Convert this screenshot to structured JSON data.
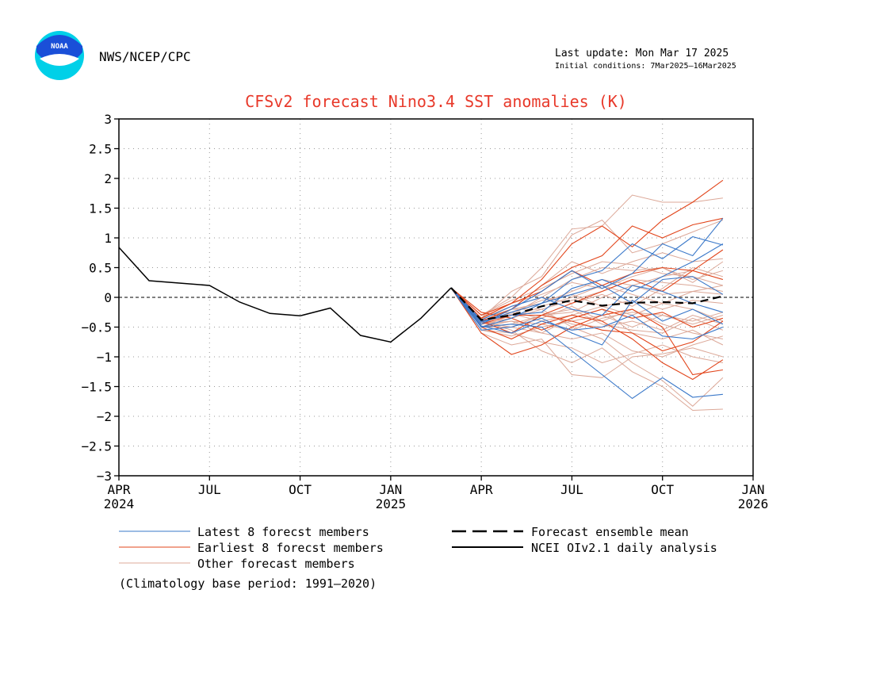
{
  "header": {
    "agency": "NWS/NCEP/CPC",
    "logo_text": "NOAA",
    "last_update": "Last update: Mon Mar 17 2025",
    "initial_conditions": "Initial conditions: 7Mar2025–16Mar2025"
  },
  "footnote": "(Climatology base period: 1991–2020)",
  "colors": {
    "title": "#e8392a",
    "latest": "#3a78c9",
    "earliest": "#e2451b",
    "other": "#dca898",
    "mean": "#000000",
    "analysis": "#000000",
    "logo_outer": "#00d0e8",
    "logo_inner": "#1a4fd8"
  },
  "chart_data": {
    "type": "line",
    "title": "CFSv2 forecast Nino3.4 SST anomalies (K)",
    "ylim": [
      -3,
      3
    ],
    "yticks": [
      3,
      2.5,
      2,
      1.5,
      1,
      0.5,
      0,
      -0.5,
      -1,
      -1.5,
      -2,
      -2.5,
      -3
    ],
    "ytick_labels": [
      "3",
      "2.5",
      "2",
      "1.5",
      "1",
      "0.5",
      "0",
      "−0.5",
      "−1",
      "−1.5",
      "−2",
      "−2.5",
      "−3"
    ],
    "xlim": [
      "2024-04",
      "2026-01"
    ],
    "xticks": [
      {
        "month": "2024-04",
        "label": "APR",
        "year": "2024"
      },
      {
        "month": "2024-07",
        "label": "JUL",
        "year": ""
      },
      {
        "month": "2024-10",
        "label": "OCT",
        "year": ""
      },
      {
        "month": "2025-01",
        "label": "JAN",
        "year": "2025"
      },
      {
        "month": "2025-04",
        "label": "APR",
        "year": ""
      },
      {
        "month": "2025-07",
        "label": "JUL",
        "year": ""
      },
      {
        "month": "2025-10",
        "label": "OCT",
        "year": ""
      },
      {
        "month": "2026-01",
        "label": "JAN",
        "year": "2026"
      }
    ],
    "grid": "dotted",
    "zero_line": "dashed",
    "legend": [
      {
        "key": "latest",
        "label": "Latest 8 forecst members",
        "style": "solid"
      },
      {
        "key": "earliest",
        "label": "Earliest 8 forecst members",
        "style": "solid"
      },
      {
        "key": "other",
        "label": "Other forecast members",
        "style": "solid"
      },
      {
        "key": "mean",
        "label": "Forecast ensemble mean",
        "style": "dashed"
      },
      {
        "key": "analysis",
        "label": "NCEI OIv2.1 daily analysis",
        "style": "solid"
      }
    ],
    "analysis": {
      "x": [
        "2024-04",
        "2024-05",
        "2024-06",
        "2024-07",
        "2024-08",
        "2024-09",
        "2024-10",
        "2024-11",
        "2024-12",
        "2025-01",
        "2025-02",
        "2025-03"
      ],
      "y": [
        0.84,
        0.28,
        0.24,
        0.2,
        -0.08,
        -0.27,
        -0.31,
        -0.18,
        -0.64,
        -0.75,
        -0.35,
        0.16
      ]
    },
    "forecast_months": [
      "2025-03",
      "2025-04",
      "2025-05",
      "2025-06",
      "2025-07",
      "2025-08",
      "2025-09",
      "2025-10",
      "2025-11",
      "2025-12"
    ],
    "ensemble_mean": [
      0.16,
      -0.38,
      -0.3,
      -0.15,
      -0.05,
      -0.14,
      -0.09,
      -0.08,
      -0.1,
      0.02
    ],
    "latest_members": [
      [
        0.16,
        -0.5,
        -0.35,
        -0.1,
        0.3,
        0.45,
        0.9,
        0.65,
        1.02,
        0.88
      ],
      [
        0.16,
        -0.45,
        -0.2,
        0.1,
        0.45,
        0.15,
        0.4,
        0.9,
        0.7,
        1.33
      ],
      [
        0.16,
        -0.4,
        -0.3,
        -0.25,
        0.15,
        0.3,
        0.1,
        0.35,
        0.6,
        0.9
      ],
      [
        0.16,
        -0.55,
        -0.5,
        -0.35,
        -0.6,
        -0.8,
        -0.05,
        -0.4,
        -0.2,
        -0.45
      ],
      [
        0.16,
        -0.5,
        -0.45,
        -0.5,
        -0.9,
        -1.3,
        -1.7,
        -1.35,
        -1.68,
        -1.63
      ],
      [
        0.16,
        -0.42,
        -0.25,
        -0.1,
        0.05,
        0.2,
        -0.1,
        0.3,
        0.35,
        0.05
      ],
      [
        0.16,
        -0.48,
        -0.6,
        -0.4,
        -0.55,
        -0.5,
        -0.3,
        -0.65,
        -0.7,
        -0.5
      ],
      [
        0.16,
        -0.38,
        -0.15,
        0.0,
        -0.2,
        -0.3,
        0.2,
        0.1,
        -0.1,
        -0.25
      ]
    ],
    "earliest_members": [
      [
        0.16,
        -0.3,
        -0.1,
        0.3,
        0.9,
        1.2,
        0.85,
        1.3,
        1.6,
        1.97
      ],
      [
        0.16,
        -0.4,
        -0.2,
        0.2,
        0.5,
        0.7,
        1.2,
        1.0,
        1.22,
        1.33
      ],
      [
        0.16,
        -0.5,
        -0.7,
        -0.45,
        -0.3,
        -0.4,
        -0.7,
        -1.1,
        -1.38,
        -1.05
      ],
      [
        0.16,
        -0.6,
        -0.96,
        -0.8,
        -0.5,
        -0.3,
        -0.2,
        -0.5,
        -1.3,
        -1.22
      ],
      [
        0.16,
        -0.35,
        -0.1,
        0.1,
        0.45,
        0.2,
        0.4,
        0.5,
        0.45,
        0.8
      ],
      [
        0.16,
        -0.45,
        -0.3,
        -0.3,
        -0.4,
        -0.55,
        -0.6,
        -0.9,
        -0.75,
        -0.4
      ],
      [
        0.16,
        -0.4,
        -0.6,
        -0.3,
        -0.1,
        0.1,
        0.3,
        0.1,
        0.45,
        0.3
      ],
      [
        0.16,
        -0.25,
        -0.35,
        -0.55,
        -0.35,
        -0.2,
        -0.35,
        -0.25,
        -0.5,
        -0.35
      ]
    ],
    "other_members": [
      [
        0.16,
        -0.3,
        0.0,
        0.5,
        1.15,
        1.2,
        1.72,
        1.6,
        1.6,
        1.67
      ],
      [
        0.16,
        -0.35,
        0.1,
        0.35,
        1.05,
        1.3,
        0.75,
        0.9,
        1.1,
        1.3
      ],
      [
        0.16,
        -0.45,
        -0.2,
        0.2,
        0.6,
        0.4,
        0.6,
        0.75,
        0.6,
        0.65
      ],
      [
        0.16,
        -0.5,
        -0.3,
        0.0,
        0.3,
        0.5,
        0.45,
        0.5,
        0.25,
        0.6
      ],
      [
        0.16,
        -0.5,
        -0.45,
        -0.3,
        -0.25,
        0.0,
        0.2,
        0.35,
        0.45,
        0.3
      ],
      [
        0.16,
        -0.4,
        -0.2,
        -0.1,
        0.1,
        0.3,
        0.2,
        0.05,
        0.1,
        0.2
      ],
      [
        0.16,
        -0.55,
        -0.65,
        -0.5,
        -0.4,
        -0.3,
        -0.5,
        -0.3,
        -0.4,
        -0.25
      ],
      [
        0.16,
        -0.45,
        -0.4,
        -0.6,
        -0.7,
        -0.6,
        -0.9,
        -1.0,
        -0.8,
        -0.65
      ],
      [
        0.16,
        -0.6,
        -0.8,
        -0.7,
        -1.3,
        -1.35,
        -1.0,
        -0.95,
        -0.85,
        -1.0
      ],
      [
        0.16,
        -0.4,
        -0.55,
        -0.9,
        -1.1,
        -0.85,
        -1.25,
        -1.5,
        -1.9,
        -1.88
      ],
      [
        0.16,
        -0.5,
        -0.35,
        -0.2,
        -0.5,
        -0.7,
        -1.1,
        -1.4,
        -1.83,
        -1.35
      ],
      [
        0.16,
        -0.3,
        -0.25,
        -0.05,
        0.05,
        -0.15,
        -0.05,
        -0.2,
        -0.05,
        -0.1
      ],
      [
        0.16,
        -0.35,
        -0.1,
        0.05,
        0.25,
        0.15,
        0.35,
        0.5,
        0.3,
        0.45
      ],
      [
        0.16,
        -0.45,
        -0.25,
        -0.35,
        -0.15,
        -0.4,
        -0.2,
        -0.45,
        -0.6,
        -0.7
      ],
      [
        0.16,
        -0.5,
        -0.5,
        -0.6,
        -0.35,
        -0.2,
        -0.6,
        -0.7,
        -0.55,
        -0.8
      ],
      [
        0.16,
        -0.35,
        -0.15,
        0.0,
        -0.1,
        0.05,
        -0.15,
        0.15,
        0.5,
        0.35
      ],
      [
        0.16,
        -0.4,
        -0.3,
        -0.25,
        -0.45,
        -0.5,
        -0.4,
        -0.55,
        -0.3,
        -0.45
      ],
      [
        0.16,
        -0.55,
        -0.6,
        -0.75,
        -0.85,
        -1.1,
        -0.95,
        -0.8,
        -1.0,
        -1.1
      ],
      [
        0.16,
        -0.3,
        -0.05,
        0.15,
        0.4,
        0.6,
        0.55,
        0.4,
        0.35,
        0.2
      ],
      [
        0.16,
        -0.45,
        -0.35,
        -0.15,
        0.0,
        0.2,
        0.05,
        -0.1,
        0.1,
        0.05
      ],
      [
        0.16,
        -0.5,
        -0.4,
        -0.45,
        -0.55,
        -0.35,
        -0.25,
        -0.3,
        -0.45,
        -0.3
      ],
      [
        0.16,
        -0.38,
        -0.28,
        -0.4,
        -0.3,
        -0.15,
        -0.3,
        -0.1,
        -0.2,
        -0.4
      ],
      [
        0.16,
        -0.42,
        -0.5,
        -0.3,
        -0.2,
        -0.45,
        -0.55,
        -0.6,
        -0.35,
        -0.55
      ],
      [
        0.16,
        -0.36,
        -0.2,
        -0.2,
        -0.05,
        0.1,
        0.3,
        0.25,
        0.2,
        0.1
      ]
    ]
  }
}
